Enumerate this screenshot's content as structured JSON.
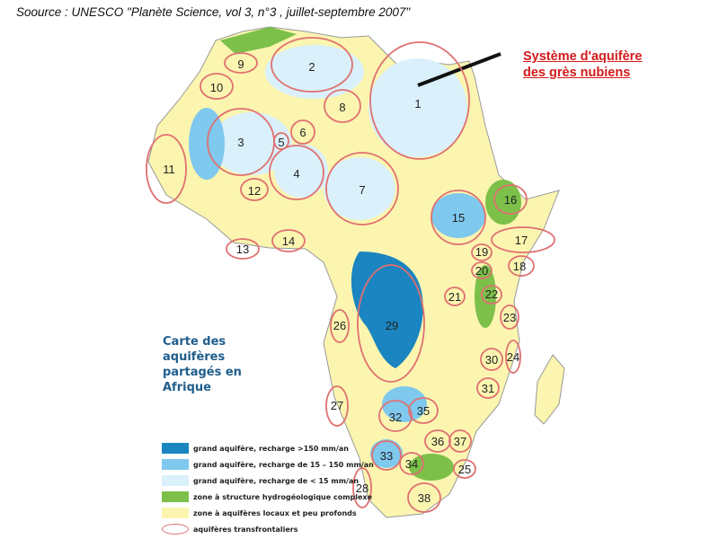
{
  "source": "Soource : UNESCO \"Planète Science, vol 3, n°3 , juillet-septembre 2007\"",
  "callout": {
    "line1": "Système d'aquifère",
    "line2": "des grès nubiens"
  },
  "map_title": {
    "line1": "Carte des",
    "line2": "aquifères",
    "line3": "partagés en",
    "line4": "Afrique"
  },
  "legend": [
    {
      "label": "grand aquifère, recharge >150 mm/an",
      "color": "#1a85c0"
    },
    {
      "label": "grand aquifère, recharge de 15 – 150 mm/an",
      "color": "#7fc8ee"
    },
    {
      "label": "grand aquifère, recharge de < 15 mm/an",
      "color": "#daf0fb"
    },
    {
      "label": "zone à structure hydrogéologique complexe",
      "color": "#7cc04a"
    },
    {
      "label": "zone à aquifères locaux et peu profonds",
      "color": "#fbf5b0"
    },
    {
      "label": "aquifères transfrontaliers",
      "color": "#e07070"
    }
  ],
  "aquifer_labels": [
    "1",
    "2",
    "3",
    "4",
    "5",
    "6",
    "7",
    "8",
    "9",
    "10",
    "11",
    "12",
    "13",
    "14",
    "15",
    "16",
    "17",
    "18",
    "19",
    "20",
    "21",
    "22",
    "23",
    "24",
    "25",
    "26",
    "27",
    "28",
    "29",
    "30",
    "31",
    "32",
    "33",
    "34",
    "35",
    "36",
    "37",
    "38"
  ]
}
